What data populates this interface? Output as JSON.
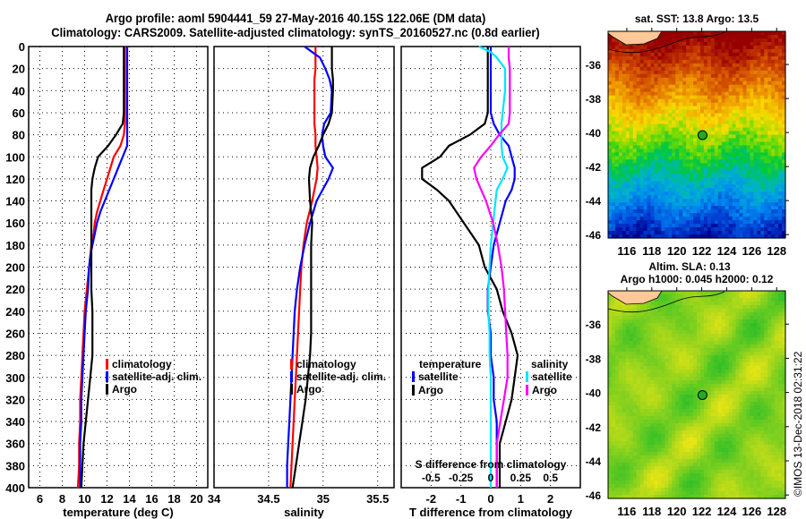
{
  "header": {
    "title_line1": "Argo profile: aoml 5904441_59 27-May-2016 40.15S 122.06E (DM data)",
    "title_line2": "Climatology: CARS2009. Satellite-adjusted climatology: synTS_20160527.nc (0.8d earlier)"
  },
  "timestamp": "©IMOS 13-Dec-2018 02:31:22",
  "colors": {
    "climatology": "#ff0000",
    "satellite": "#0000ff",
    "argo": "#000000",
    "sal_satellite": "#00e5ff",
    "sal_argo": "#ff00ff"
  },
  "chart_data": [
    {
      "type": "line",
      "name": "temperature",
      "xlabel": "temperature (deg C)",
      "ylabel": "",
      "xlim": [
        5,
        21
      ],
      "ylim": [
        400,
        0
      ],
      "xticks": [
        6,
        8,
        10,
        12,
        14,
        16,
        18,
        20
      ],
      "yticks": [
        0,
        20,
        40,
        60,
        80,
        100,
        120,
        140,
        160,
        180,
        200,
        220,
        240,
        260,
        280,
        300,
        320,
        340,
        360,
        380,
        400
      ],
      "grid": true,
      "legend": {
        "placement": "center-right",
        "entries": [
          "climatology",
          "satellite-adj. clim.",
          "Argo"
        ]
      },
      "depth": [
        0,
        10,
        20,
        40,
        60,
        70,
        80,
        90,
        100,
        110,
        120,
        130,
        140,
        150,
        160,
        170,
        180,
        190,
        200,
        220,
        240,
        260,
        280,
        300,
        320,
        340,
        360,
        380,
        400
      ],
      "series": [
        {
          "name": "climatology",
          "values": [
            13.6,
            13.6,
            13.6,
            13.6,
            13.6,
            13.6,
            13.5,
            13.2,
            12.6,
            12.3,
            12.0,
            11.7,
            11.4,
            11.1,
            10.9,
            10.8,
            10.6,
            10.5,
            10.4,
            10.2,
            10.0,
            9.9,
            9.8,
            9.7,
            9.6,
            9.6,
            9.5,
            9.5,
            9.4
          ]
        },
        {
          "name": "satellite-adj. clim.",
          "values": [
            13.8,
            13.8,
            13.8,
            13.8,
            13.8,
            13.8,
            13.8,
            13.8,
            13.4,
            13.0,
            12.6,
            12.2,
            11.8,
            11.4,
            11.1,
            10.9,
            10.7,
            10.5,
            10.4,
            10.3,
            10.1,
            10.0,
            9.9,
            9.8,
            9.7,
            9.7,
            9.6,
            9.6,
            9.6
          ]
        },
        {
          "name": "Argo",
          "values": [
            13.5,
            13.5,
            13.5,
            13.5,
            13.5,
            13.4,
            12.8,
            12.1,
            11.2,
            10.9,
            10.7,
            10.6,
            10.6,
            10.6,
            10.6,
            10.6,
            10.6,
            10.6,
            10.6,
            10.6,
            10.7,
            10.7,
            10.7,
            10.5,
            10.3,
            10.1,
            9.9,
            9.8,
            9.7
          ]
        }
      ]
    },
    {
      "type": "line",
      "name": "salinity",
      "xlabel": "salinity",
      "xlim": [
        34,
        35.65
      ],
      "ylim": [
        400,
        0
      ],
      "xticks": [
        34,
        34.5,
        35,
        35.5
      ],
      "grid": true,
      "legend": {
        "placement": "center-right",
        "entries": [
          "climatology",
          "satellite-adj. clim.",
          "Argo"
        ]
      },
      "depth": [
        0,
        5,
        10,
        20,
        30,
        40,
        60,
        70,
        80,
        90,
        100,
        110,
        120,
        140,
        160,
        180,
        200,
        220,
        240,
        260,
        280,
        300,
        320,
        340,
        360,
        380,
        400
      ],
      "series": [
        {
          "name": "climatology",
          "values": [
            34.93,
            34.93,
            34.93,
            34.93,
            34.92,
            34.92,
            34.92,
            34.92,
            34.93,
            34.93,
            34.94,
            34.95,
            34.94,
            34.9,
            34.85,
            34.82,
            34.8,
            34.79,
            34.78,
            34.77,
            34.76,
            34.75,
            34.74,
            34.73,
            34.72,
            34.71,
            34.7
          ]
        },
        {
          "name": "satellite-adj. clim.",
          "values": [
            34.83,
            34.9,
            34.97,
            35.02,
            35.06,
            35.08,
            35.07,
            35.01,
            34.99,
            35.0,
            35.02,
            35.09,
            35.05,
            34.94,
            34.88,
            34.83,
            34.79,
            34.76,
            34.74,
            34.73,
            34.72,
            34.71,
            34.7,
            34.69,
            34.68,
            34.67,
            34.67
          ]
        },
        {
          "name": "Argo",
          "values": [
            35.08,
            35.08,
            35.08,
            35.08,
            35.09,
            35.09,
            35.08,
            35.05,
            35.0,
            34.96,
            34.91,
            34.88,
            34.87,
            34.88,
            34.9,
            34.89,
            34.89,
            34.89,
            34.89,
            34.89,
            34.88,
            34.86,
            34.84,
            34.81,
            34.78,
            34.75,
            34.72
          ]
        }
      ]
    },
    {
      "type": "line",
      "name": "difference",
      "xlabel": "T difference from climatology",
      "x2label": "S difference from climatology",
      "xlim": [
        -3,
        3
      ],
      "x2lim": [
        -0.75,
        0.75
      ],
      "ylim": [
        400,
        0
      ],
      "xticks": [
        -2,
        -1,
        0,
        1,
        2
      ],
      "x2ticks": [
        -0.5,
        -0.25,
        0,
        0.25,
        0.5
      ],
      "grid": true,
      "legend": {
        "placement": "center",
        "groups": [
          {
            "title": "temperature",
            "entries": [
              "satellite",
              "Argo"
            ]
          },
          {
            "title": "salinity",
            "entries": [
              "satellite",
              "Argo"
            ]
          }
        ]
      },
      "depth": [
        0,
        5,
        10,
        20,
        40,
        60,
        70,
        80,
        90,
        100,
        110,
        120,
        130,
        140,
        160,
        180,
        200,
        220,
        240,
        260,
        280,
        300,
        320,
        340,
        360,
        380,
        400
      ],
      "series": [
        {
          "name": "temperature satellite",
          "axis": "T",
          "values": [
            0.0,
            0.0,
            0.0,
            0.0,
            0.0,
            0.0,
            0.1,
            0.3,
            0.6,
            0.7,
            0.8,
            0.8,
            0.7,
            0.5,
            0.3,
            0.1,
            0.0,
            -0.1,
            -0.1,
            0.0,
            0.0,
            0.1,
            0.1,
            0.2,
            0.2,
            0.2,
            0.2
          ]
        },
        {
          "name": "temperature Argo",
          "axis": "T",
          "values": [
            -0.1,
            -0.1,
            -0.1,
            -0.1,
            -0.1,
            -0.1,
            -0.2,
            -0.7,
            -1.4,
            -1.7,
            -2.3,
            -2.3,
            -1.8,
            -1.4,
            -0.9,
            -0.4,
            -0.2,
            0.2,
            0.4,
            0.7,
            0.9,
            0.8,
            0.7,
            0.5,
            0.3,
            0.3,
            0.3
          ]
        },
        {
          "name": "salinity satellite",
          "axis": "S",
          "values": [
            -0.1,
            0.0,
            0.05,
            0.12,
            0.12,
            0.1,
            0.09,
            0.09,
            0.09,
            0.1,
            0.14,
            0.1,
            0.05,
            0.04,
            0.02,
            0.0,
            -0.01,
            -0.02,
            -0.02,
            -0.01,
            -0.01,
            0.0,
            0.0,
            0.0,
            0.0,
            0.0,
            0.0
          ]
        },
        {
          "name": "salinity Argo",
          "axis": "S",
          "values": [
            0.15,
            0.15,
            0.15,
            0.16,
            0.16,
            0.16,
            0.15,
            0.07,
            0.0,
            -0.08,
            -0.14,
            -0.12,
            -0.08,
            -0.04,
            0.02,
            0.06,
            0.09,
            0.11,
            0.12,
            0.13,
            0.14,
            0.14,
            0.11,
            0.08,
            0.05,
            0.05,
            0.05
          ]
        }
      ]
    },
    {
      "type": "heatmap",
      "name": "sst-map",
      "title": "sat. SST: 13.8 Argo: 13.5",
      "xlim": [
        114.5,
        128.7
      ],
      "ylim": [
        -46.2,
        -34.05
      ],
      "xticks": [
        116,
        118,
        120,
        122,
        124,
        126,
        128
      ],
      "yticks": [
        -36,
        -38,
        -40,
        -42,
        -44,
        -46
      ],
      "marker": {
        "lon": 122.06,
        "lat": -40.15
      },
      "colormap": "jet (warm north, cold south)"
    },
    {
      "type": "heatmap",
      "name": "sla-map",
      "title_line1": "Altim. SLA: 0.13",
      "title_line2": "Argo h1000: 0.045 h2000: 0.12",
      "xlim": [
        114.5,
        128.7
      ],
      "ylim": [
        -46.2,
        -34.05
      ],
      "xticks": [
        116,
        118,
        120,
        122,
        124,
        126,
        128
      ],
      "yticks": [
        -36,
        -38,
        -40,
        -42,
        -44,
        -46
      ],
      "marker": {
        "lon": 122.06,
        "lat": -40.15
      },
      "colormap": "green-yellow"
    }
  ]
}
